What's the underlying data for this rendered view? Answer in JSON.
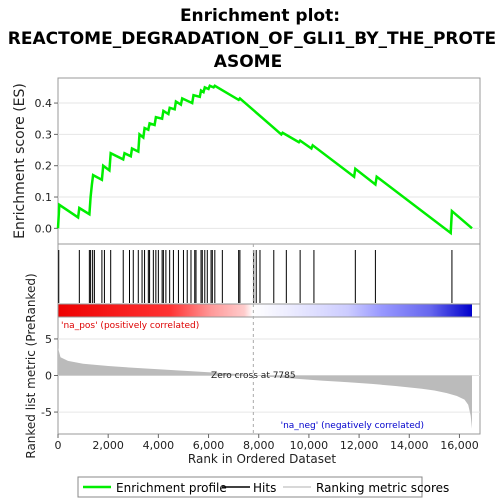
{
  "title_line1": "Enrichment plot:",
  "title_line2": "REACTOME_DEGRADATION_OF_GLI1_BY_THE_PROTE",
  "title_line3": "ASOME",
  "colors": {
    "es_line": "#00ee00",
    "hits": "#000000",
    "metric_fill": "#bbbbbb",
    "pos_text": "#dd0000",
    "neg_text": "#0000cc",
    "zero_line": "#aaaaaa"
  },
  "chart_data": [
    {
      "type": "line",
      "name": "enrichment-profile",
      "ylabel": "Enrichment score (ES)",
      "ylim": [
        -0.05,
        0.48
      ],
      "xlim": [
        0,
        16500
      ],
      "yticks": [
        "0.0",
        "0.1",
        "0.2",
        "0.3",
        "0.4"
      ],
      "ytick_values": [
        0.0,
        0.1,
        0.2,
        0.3,
        0.4
      ],
      "x": [
        0,
        50,
        800,
        850,
        1250,
        1300,
        1350,
        1400,
        1750,
        1800,
        2050,
        2100,
        2600,
        2650,
        2900,
        2950,
        3200,
        3250,
        3400,
        3450,
        3600,
        3650,
        3850,
        3900,
        4150,
        4200,
        4400,
        4450,
        4650,
        4700,
        4900,
        4950,
        5350,
        5400,
        5650,
        5700,
        5800,
        5850,
        6000,
        6050,
        6200,
        6250,
        7200,
        7250,
        8900,
        8950,
        9600,
        9650,
        10100,
        10150,
        11800,
        11850,
        12650,
        12700,
        15650,
        15700,
        16500
      ],
      "y": [
        0.0,
        0.075,
        0.035,
        0.065,
        0.045,
        0.1,
        0.14,
        0.17,
        0.155,
        0.2,
        0.185,
        0.24,
        0.22,
        0.24,
        0.23,
        0.255,
        0.245,
        0.3,
        0.29,
        0.32,
        0.315,
        0.335,
        0.33,
        0.355,
        0.35,
        0.375,
        0.365,
        0.385,
        0.38,
        0.405,
        0.395,
        0.415,
        0.4,
        0.425,
        0.42,
        0.44,
        0.435,
        0.45,
        0.445,
        0.455,
        0.45,
        0.455,
        0.41,
        0.415,
        0.3,
        0.305,
        0.275,
        0.28,
        0.255,
        0.265,
        0.165,
        0.19,
        0.14,
        0.165,
        -0.015,
        0.055,
        0.0
      ]
    },
    {
      "type": "scatter",
      "name": "hits",
      "hit_positions": [
        30,
        850,
        1250,
        1300,
        1380,
        1450,
        1750,
        1850,
        2100,
        2600,
        2850,
        3000,
        3200,
        3350,
        3450,
        3600,
        3650,
        3800,
        3900,
        4000,
        4150,
        4200,
        4300,
        4450,
        4600,
        4800,
        5000,
        5150,
        5300,
        5450,
        5500,
        5700,
        5750,
        5850,
        5950,
        6100,
        6150,
        6250,
        6550,
        7200,
        7250,
        7800,
        7900,
        8050,
        8600,
        9100,
        9650,
        10200,
        11850,
        12650,
        15700
      ]
    },
    {
      "type": "area",
      "name": "ranked-list-metric",
      "ylabel": "Ranked list metric (PreRanked)",
      "xlabel": "Rank in Ordered Dataset",
      "ylim": [
        -8,
        8
      ],
      "xlim": [
        0,
        16500
      ],
      "yticks": [
        "-5",
        "0",
        "5"
      ],
      "ytick_values": [
        -5,
        0,
        5
      ],
      "xticks": [
        "0",
        "2,000",
        "4,000",
        "6,000",
        "8,000",
        "10,000",
        "12,000",
        "14,000",
        "16,000"
      ],
      "xtick_values": [
        0,
        2000,
        4000,
        6000,
        8000,
        10000,
        12000,
        14000,
        16000
      ],
      "x": [
        0,
        100,
        400,
        1000,
        2000,
        3000,
        4000,
        5000,
        6000,
        7000,
        7785,
        8500,
        9500,
        10500,
        11500,
        12500,
        13500,
        14500,
        15000,
        15500,
        15900,
        16200,
        16350,
        16450,
        16500
      ],
      "y": [
        3.8,
        2.5,
        2.0,
        1.6,
        1.3,
        1.05,
        0.85,
        0.65,
        0.45,
        0.25,
        0.0,
        -0.2,
        -0.45,
        -0.7,
        -0.9,
        -1.15,
        -1.45,
        -1.8,
        -2.05,
        -2.4,
        -2.8,
        -3.3,
        -4.0,
        -5.5,
        -7.3
      ],
      "zero_cross_label": "Zero cross at 7785",
      "zero_cross": 7785,
      "pos_label": "'na_pos' (positively correlated)",
      "neg_label": "'na_neg' (negatively correlated)"
    }
  ],
  "legend": {
    "items": [
      {
        "label": "Enrichment profile"
      },
      {
        "label": "Hits"
      },
      {
        "label": "Ranking metric scores"
      }
    ]
  }
}
